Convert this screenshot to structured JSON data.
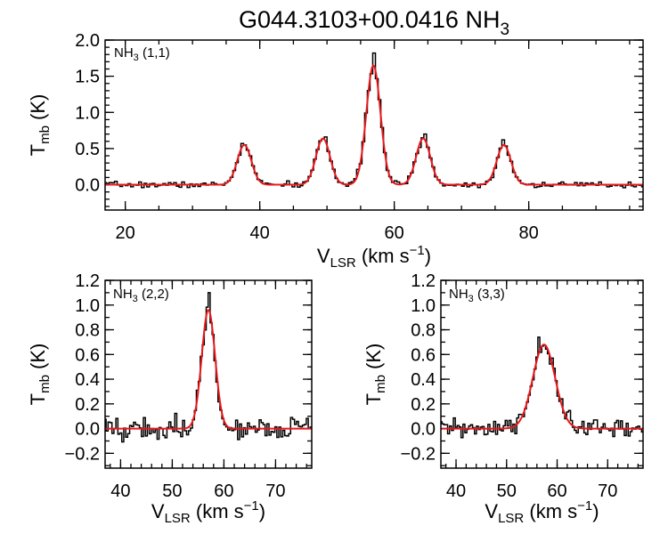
{
  "title": {
    "main": "G044.3103+00.0416 NH",
    "sub": "3"
  },
  "colors": {
    "data": "#000000",
    "fit": "#e8191c",
    "axes": "#000000"
  },
  "chart_data": [
    {
      "type": "line",
      "label_main": "NH",
      "label_sub": "3",
      "label_rest": " (1,1)",
      "xlabel_main": "V",
      "xlabel_sub": "LSR",
      "xlabel_unit": " (km s",
      "xlabel_sup": "−1",
      "xlabel_end": ")",
      "ylabel_main": "T",
      "ylabel_sub": "mb",
      "ylabel_unit": " (K)",
      "xlim": [
        17,
        97
      ],
      "ylim": [
        -0.35,
        2.0
      ],
      "xticks": [
        20,
        40,
        60,
        80
      ],
      "xtick_labels": [
        "20",
        "40",
        "60",
        "80"
      ],
      "xminor": 5,
      "yticks": [
        0.0,
        0.5,
        1.0,
        1.5,
        2.0
      ],
      "ytick_labels": [
        "0.0",
        "0.5",
        "1.0",
        "1.5",
        "2.0"
      ],
      "yminor": 0.1,
      "x_range": [
        17,
        97
      ],
      "x_step": 0.4,
      "noise": 0.02,
      "fit_components": [
        {
          "center": 37.7,
          "amp": 0.55,
          "sigma": 1.05
        },
        {
          "center": 49.4,
          "amp": 0.64,
          "sigma": 1.05
        },
        {
          "center": 56.9,
          "amp": 1.65,
          "sigma": 1.05
        },
        {
          "center": 64.3,
          "amp": 0.64,
          "sigma": 1.05
        },
        {
          "center": 76.3,
          "amp": 0.55,
          "sigma": 1.05
        }
      ],
      "series": [
        {
          "name": "observed",
          "kind": "histogram",
          "peaks_x": [
            37.5,
            49.6,
            57.0,
            64.6,
            76.3
          ],
          "peaks_y": [
            0.57,
            0.66,
            1.82,
            0.7,
            0.62
          ]
        },
        {
          "name": "fit",
          "kind": "model"
        }
      ]
    },
    {
      "type": "line",
      "label_main": "NH",
      "label_sub": "3",
      "label_rest": " (2,2)",
      "xlabel_main": "V",
      "xlabel_sub": "LSR",
      "xlabel_unit": " (km s",
      "xlabel_sup": "−1",
      "xlabel_end": ")",
      "ylabel_main": "T",
      "ylabel_sub": "mb",
      "ylabel_unit": " (K)",
      "xlim": [
        37,
        77
      ],
      "ylim": [
        -0.32,
        1.2
      ],
      "xticks": [
        40,
        50,
        60,
        70
      ],
      "xtick_labels": [
        "40",
        "50",
        "60",
        "70"
      ],
      "xminor": 2,
      "yticks": [
        -0.2,
        0.0,
        0.2,
        0.4,
        0.6,
        0.8,
        1.0,
        1.2
      ],
      "ytick_labels": [
        "−0.2",
        "0.0",
        "0.2",
        "0.4",
        "0.6",
        "0.8",
        "1.0",
        "1.2"
      ],
      "yminor": 0.1,
      "x_range": [
        37,
        77
      ],
      "x_step": 0.38,
      "noise": 0.045,
      "fit_components": [
        {
          "center": 57.0,
          "amp": 0.96,
          "sigma": 1.3
        }
      ],
      "series": [
        {
          "name": "observed",
          "kind": "histogram",
          "peaks_x": [
            57.0
          ],
          "peaks_y": [
            1.1
          ]
        },
        {
          "name": "fit",
          "kind": "model"
        }
      ]
    },
    {
      "type": "line",
      "label_main": "NH",
      "label_sub": "3",
      "label_rest": " (3,3)",
      "xlabel_main": "V",
      "xlabel_sub": "LSR",
      "xlabel_unit": " (km s",
      "xlabel_sup": "−1",
      "xlabel_end": ")",
      "ylabel_main": "T",
      "ylabel_sub": "mb",
      "ylabel_unit": " (K)",
      "xlim": [
        37,
        77
      ],
      "ylim": [
        -0.32,
        1.2
      ],
      "xticks": [
        40,
        50,
        60,
        70
      ],
      "xtick_labels": [
        "40",
        "50",
        "60",
        "70"
      ],
      "xminor": 2,
      "yticks": [
        -0.2,
        0.0,
        0.2,
        0.4,
        0.6,
        0.8,
        1.0,
        1.2
      ],
      "ytick_labels": [
        "−0.2",
        "0.0",
        "0.2",
        "0.4",
        "0.6",
        "0.8",
        "1.0",
        "1.2"
      ],
      "yminor": 0.1,
      "x_range": [
        37,
        77
      ],
      "x_step": 0.38,
      "noise": 0.04,
      "fit_components": [
        {
          "center": 57.4,
          "amp": 0.68,
          "sigma": 2.2
        }
      ],
      "series": [
        {
          "name": "observed",
          "kind": "histogram",
          "peaks_x": [
            56.4
          ],
          "peaks_y": [
            0.74
          ]
        },
        {
          "name": "fit",
          "kind": "model"
        }
      ]
    }
  ]
}
